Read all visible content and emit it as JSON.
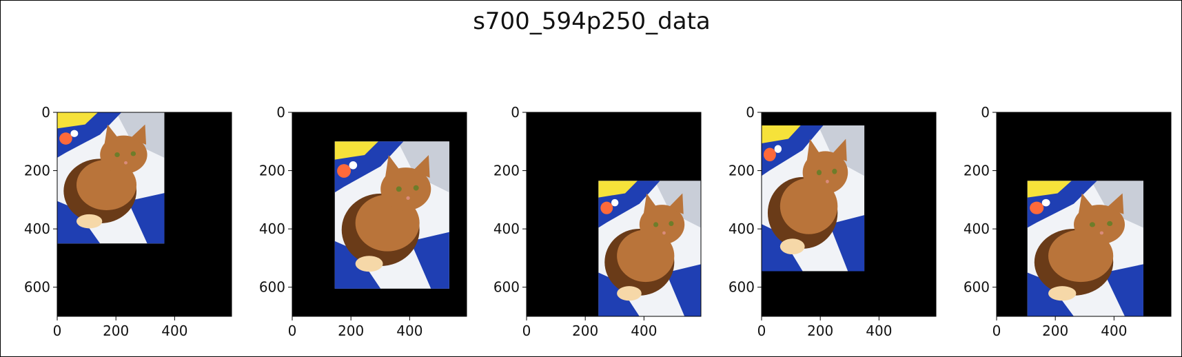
{
  "chart_data": {
    "type": "image-grid",
    "title": "s700_594p250_data",
    "panels": [
      {
        "image_extent": {
          "x": [
            0,
            365
          ],
          "y": [
            0,
            450
          ]
        }
      },
      {
        "image_extent": {
          "x": [
            145,
            535
          ],
          "y": [
            100,
            605
          ]
        }
      },
      {
        "image_extent": {
          "x": [
            245,
            594
          ],
          "y": [
            235,
            700
          ]
        }
      },
      {
        "image_extent": {
          "x": [
            0,
            350
          ],
          "y": [
            45,
            545
          ]
        }
      },
      {
        "image_extent": {
          "x": [
            105,
            500
          ],
          "y": [
            235,
            700
          ]
        }
      }
    ],
    "xlim": [
      0,
      594
    ],
    "ylim": [
      700,
      0
    ],
    "xticks": [
      0,
      200,
      400
    ],
    "yticks": [
      0,
      200,
      400,
      600
    ],
    "colors": {
      "canvas": "#000000",
      "fabric": "#f1f3f7",
      "blue_blanket": "#1f3fb3",
      "yellow_patch": "#f6e23a",
      "cat_fur": "#b9743a",
      "cat_shadow": "#6a3b18",
      "eye": "#6e7d2a"
    }
  }
}
